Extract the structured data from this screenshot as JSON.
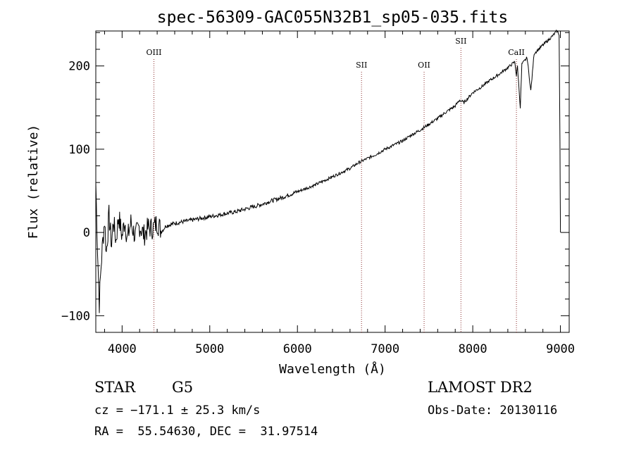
{
  "chart_data": {
    "type": "line",
    "title": "spec-56309-GAC055N32B1_sp05-035.fits",
    "xlabel": "Wavelength (Å)",
    "ylabel": "Flux (relative)",
    "xlim": [
      3700,
      9100
    ],
    "ylim": [
      -120,
      242
    ],
    "x_ticks": [
      4000,
      5000,
      6000,
      7000,
      8000,
      9000
    ],
    "y_ticks": [
      -100,
      0,
      100,
      200
    ],
    "grid": false,
    "series": [
      {
        "points": [
          [
            3700,
            60
          ],
          [
            3720,
            -20
          ],
          [
            3740,
            -85
          ],
          [
            3760,
            -40
          ],
          [
            3780,
            -10
          ],
          [
            3800,
            15
          ],
          [
            3820,
            -25
          ],
          [
            3850,
            20
          ],
          [
            3880,
            -15
          ],
          [
            3900,
            15
          ],
          [
            3930,
            -10
          ],
          [
            3960,
            20
          ],
          [
            4000,
            -5
          ],
          [
            4030,
            15
          ],
          [
            4060,
            -8
          ],
          [
            4100,
            12
          ],
          [
            4150,
            -5
          ],
          [
            4200,
            8
          ],
          [
            4250,
            -3
          ],
          [
            4300,
            6
          ],
          [
            4350,
            5
          ],
          [
            4400,
            12
          ],
          [
            4450,
            1
          ],
          [
            4500,
            8
          ],
          [
            4600,
            11
          ],
          [
            4700,
            13
          ],
          [
            4800,
            15
          ],
          [
            4900,
            17
          ],
          [
            5000,
            19
          ],
          [
            5100,
            21
          ],
          [
            5200,
            23
          ],
          [
            5300,
            25
          ],
          [
            5400,
            28
          ],
          [
            5500,
            31
          ],
          [
            5600,
            34
          ],
          [
            5700,
            38
          ],
          [
            5800,
            41
          ],
          [
            5900,
            45
          ],
          [
            6000,
            49
          ],
          [
            6100,
            53
          ],
          [
            6200,
            57
          ],
          [
            6300,
            62
          ],
          [
            6400,
            67
          ],
          [
            6500,
            72
          ],
          [
            6600,
            77
          ],
          [
            6700,
            84
          ],
          [
            6800,
            89
          ],
          [
            6900,
            94
          ],
          [
            7000,
            100
          ],
          [
            7100,
            105
          ],
          [
            7200,
            110
          ],
          [
            7300,
            117
          ],
          [
            7400,
            123
          ],
          [
            7500,
            130
          ],
          [
            7600,
            137
          ],
          [
            7700,
            145
          ],
          [
            7800,
            152
          ],
          [
            7850,
            159
          ],
          [
            7900,
            156
          ],
          [
            8000,
            168
          ],
          [
            8100,
            175
          ],
          [
            8200,
            183
          ],
          [
            8300,
            190
          ],
          [
            8400,
            198
          ],
          [
            8480,
            205
          ],
          [
            8498,
            188
          ],
          [
            8510,
            200
          ],
          [
            8542,
            150
          ],
          [
            8560,
            202
          ],
          [
            8620,
            210
          ],
          [
            8662,
            170
          ],
          [
            8700,
            215
          ],
          [
            8800,
            225
          ],
          [
            8900,
            235
          ],
          [
            8960,
            242
          ],
          [
            8985,
            238
          ],
          [
            8995,
            110
          ],
          [
            9000,
            0
          ]
        ]
      }
    ],
    "lines": [
      {
        "label": "OIII",
        "x": 4363
      },
      {
        "label": "SII",
        "x": 6731
      },
      {
        "label": "OII",
        "x": 7445
      },
      {
        "label": "SII",
        "x": 7865
      },
      {
        "label": "CaII",
        "x": 8498
      }
    ],
    "line_color": "#8b2e2e",
    "series_color": "#000000"
  },
  "info": {
    "class": "STAR",
    "subclass": "G5",
    "survey": "LAMOST DR2",
    "cz": "cz = −171.1 ± 25.3 km/s",
    "obs_date": "Obs-Date: 20130116",
    "radec": "RA =  55.54630, DEC =  31.97514"
  }
}
